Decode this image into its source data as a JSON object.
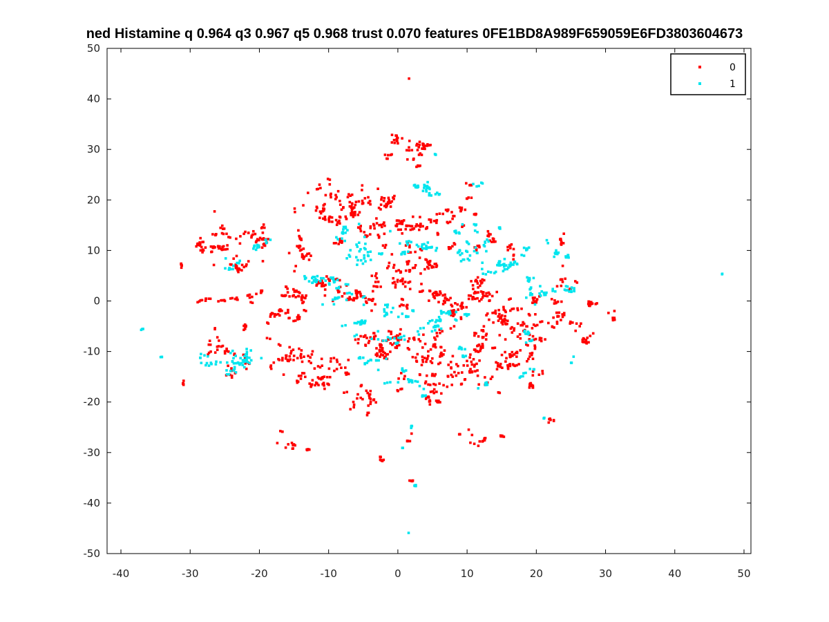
{
  "chart_data": {
    "type": "scatter",
    "title": "ned Histamine q 0.964 q3 0.967 q5 0.968 trust 0.070 features 0FE1BD8A989F659059E6FD3803604673",
    "xlabel": "",
    "ylabel": "",
    "xlim": [
      -42,
      51
    ],
    "ylim": [
      -50,
      50
    ],
    "xticks": [
      -40,
      -30,
      -20,
      -10,
      0,
      10,
      20,
      30,
      40,
      50
    ],
    "yticks": [
      -50,
      -40,
      -30,
      -20,
      -10,
      0,
      10,
      20,
      30,
      40,
      50
    ],
    "grid": false,
    "legend_position": "top-right",
    "series": [
      {
        "name": "0",
        "color": "#ff0000",
        "clusters": [
          {
            "cx": -27.5,
            "cy": 11.0,
            "sx": 1.5,
            "sy": 1.0,
            "n": 40
          },
          {
            "cx": -23.0,
            "cy": 12.5,
            "sx": 2.0,
            "sy": 1.2,
            "n": 35
          },
          {
            "cx": -23.5,
            "cy": 6.0,
            "sx": 1.2,
            "sy": 1.2,
            "n": 25
          },
          {
            "cx": -19.5,
            "cy": 10.0,
            "sx": 1.0,
            "sy": 2.5,
            "n": 15
          },
          {
            "cx": -27.0,
            "cy": -0.5,
            "sx": 2.0,
            "sy": 0.8,
            "n": 20
          },
          {
            "cx": -23.0,
            "cy": -4.0,
            "sx": 1.0,
            "sy": 1.5,
            "n": 8
          },
          {
            "cx": -17.5,
            "cy": 3.0,
            "sx": 1.5,
            "sy": 1.0,
            "n": 10
          },
          {
            "cx": -14.5,
            "cy": 9.0,
            "sx": 1.0,
            "sy": 2.0,
            "n": 30
          },
          {
            "cx": -14.5,
            "cy": -0.5,
            "sx": 1.5,
            "sy": 1.5,
            "n": 30
          },
          {
            "cx": -17.0,
            "cy": -3.5,
            "sx": 1.2,
            "sy": 1.2,
            "n": 25
          },
          {
            "cx": -16.0,
            "cy": -10.5,
            "sx": 2.0,
            "sy": 1.8,
            "n": 45
          },
          {
            "cx": -12.0,
            "cy": -15.0,
            "sx": 1.5,
            "sy": 2.0,
            "n": 40
          },
          {
            "cx": -9.0,
            "cy": -14.5,
            "sx": 1.5,
            "sy": 1.0,
            "n": 15
          },
          {
            "cx": -11.0,
            "cy": 19.0,
            "sx": 1.8,
            "sy": 2.5,
            "n": 40
          },
          {
            "cx": -7.5,
            "cy": 18.5,
            "sx": 1.2,
            "sy": 2.0,
            "n": 25
          },
          {
            "cx": -5.5,
            "cy": 20.0,
            "sx": 1.5,
            "sy": 2.0,
            "n": 35
          },
          {
            "cx": -2.0,
            "cy": 20.0,
            "sx": 1.5,
            "sy": 1.5,
            "n": 25
          },
          {
            "cx": -2.5,
            "cy": 13.0,
            "sx": 1.5,
            "sy": 2.0,
            "n": 30
          },
          {
            "cx": 0.5,
            "cy": 14.5,
            "sx": 1.5,
            "sy": 2.0,
            "n": 25
          },
          {
            "cx": 4.5,
            "cy": 15.5,
            "sx": 2.0,
            "sy": 1.0,
            "n": 30
          },
          {
            "cx": 8.5,
            "cy": 17.0,
            "sx": 1.5,
            "sy": 1.5,
            "n": 20
          },
          {
            "cx": 10.5,
            "cy": 19.0,
            "sx": 0.8,
            "sy": 1.5,
            "n": 8
          },
          {
            "cx": 10.0,
            "cy": 23.0,
            "sx": 0.6,
            "sy": 0.3,
            "n": 5
          },
          {
            "cx": 1.0,
            "cy": 6.5,
            "sx": 2.0,
            "sy": 1.5,
            "n": 35
          },
          {
            "cx": 4.0,
            "cy": 7.5,
            "sx": 1.5,
            "sy": 1.5,
            "n": 25
          },
          {
            "cx": -4.5,
            "cy": 0.5,
            "sx": 2.0,
            "sy": 1.2,
            "n": 35
          },
          {
            "cx": 0.0,
            "cy": 2.5,
            "sx": 2.0,
            "sy": 1.5,
            "n": 30
          },
          {
            "cx": 5.0,
            "cy": 1.0,
            "sx": 2.0,
            "sy": 1.5,
            "n": 35
          },
          {
            "cx": 8.5,
            "cy": -0.5,
            "sx": 1.5,
            "sy": 1.5,
            "n": 25
          },
          {
            "cx": -9.5,
            "cy": 2.5,
            "sx": 2.0,
            "sy": 1.8,
            "n": 30
          },
          {
            "cx": -4.5,
            "cy": -8.0,
            "sx": 2.0,
            "sy": 2.0,
            "n": 50
          },
          {
            "cx": 0.5,
            "cy": -9.5,
            "sx": 2.0,
            "sy": 2.0,
            "n": 45
          },
          {
            "cx": 4.5,
            "cy": -11.0,
            "sx": 2.0,
            "sy": 2.0,
            "n": 45
          },
          {
            "cx": 2.5,
            "cy": -16.0,
            "sx": 1.5,
            "sy": 1.2,
            "n": 25
          },
          {
            "cx": 4.5,
            "cy": -19.0,
            "sx": 1.2,
            "sy": 1.5,
            "n": 20
          },
          {
            "cx": -5.0,
            "cy": -19.5,
            "sx": 1.2,
            "sy": 2.0,
            "n": 30
          },
          {
            "cx": 10.0,
            "cy": -13.0,
            "sx": 2.0,
            "sy": 2.0,
            "n": 45
          },
          {
            "cx": 12.0,
            "cy": -8.5,
            "sx": 1.5,
            "sy": 1.5,
            "n": 30
          },
          {
            "cx": 13.5,
            "cy": -0.5,
            "sx": 1.5,
            "sy": 1.5,
            "n": 30
          },
          {
            "cx": 16.5,
            "cy": -4.5,
            "sx": 2.0,
            "sy": 1.5,
            "n": 45
          },
          {
            "cx": 16.5,
            "cy": -11.5,
            "sx": 1.8,
            "sy": 1.5,
            "n": 50
          },
          {
            "cx": 20.5,
            "cy": -9.0,
            "sx": 1.5,
            "sy": 2.0,
            "n": 30
          },
          {
            "cx": 19.0,
            "cy": -17.0,
            "sx": 0.6,
            "sy": 1.5,
            "n": 10
          },
          {
            "cx": 22.5,
            "cy": -4.0,
            "sx": 1.8,
            "sy": 1.5,
            "n": 30
          },
          {
            "cx": 23.5,
            "cy": 4.0,
            "sx": 1.0,
            "sy": 1.5,
            "n": 15
          },
          {
            "cx": 23.5,
            "cy": 11.5,
            "sx": 0.5,
            "sy": 1.5,
            "n": 10
          },
          {
            "cx": 26.5,
            "cy": -5.5,
            "sx": 1.2,
            "sy": 1.5,
            "n": 20
          },
          {
            "cx": 28.0,
            "cy": -1.0,
            "sx": 0.8,
            "sy": 1.0,
            "n": 12
          },
          {
            "cx": 31.0,
            "cy": -2.0,
            "sx": 0.6,
            "sy": 0.8,
            "n": 10
          },
          {
            "cx": 13.0,
            "cy": 12.5,
            "sx": 1.0,
            "sy": 1.5,
            "n": 20
          },
          {
            "cx": 17.0,
            "cy": 10.0,
            "sx": 1.2,
            "sy": 1.0,
            "n": 10
          },
          {
            "cx": 11.0,
            "cy": 3.5,
            "sx": 1.5,
            "sy": 1.5,
            "n": 25
          },
          {
            "cx": 2.0,
            "cy": 31.0,
            "sx": 1.5,
            "sy": 0.8,
            "n": 30
          },
          {
            "cx": 3.0,
            "cy": 27.5,
            "sx": 1.0,
            "sy": 0.8,
            "n": 12
          },
          {
            "cx": -0.5,
            "cy": 32.5,
            "sx": 0.6,
            "sy": 1.0,
            "n": 8
          },
          {
            "cx": -2.0,
            "cy": 28.5,
            "sx": 0.8,
            "sy": 0.5,
            "n": 6
          },
          {
            "cx": 1.6,
            "cy": 44.0,
            "sx": 0.1,
            "sy": 0.1,
            "n": 1
          },
          {
            "cx": -26.5,
            "cy": 17.7,
            "sx": 0.1,
            "sy": 0.1,
            "n": 1
          },
          {
            "cx": -31.0,
            "cy": 8.0,
            "sx": 0.2,
            "sy": 0.6,
            "n": 5
          },
          {
            "cx": -31.0,
            "cy": -15.5,
            "sx": 0.2,
            "sy": 0.6,
            "n": 6
          },
          {
            "cx": -23.0,
            "cy": -12.0,
            "sx": 1.5,
            "sy": 2.0,
            "n": 25
          },
          {
            "cx": -26.5,
            "cy": -8.5,
            "sx": 1.0,
            "sy": 1.5,
            "n": 12
          },
          {
            "cx": -16.0,
            "cy": -28.5,
            "sx": 1.2,
            "sy": 0.8,
            "n": 15
          },
          {
            "cx": -17.0,
            "cy": -25.5,
            "sx": 0.2,
            "sy": 0.3,
            "n": 3
          },
          {
            "cx": -3.0,
            "cy": -31.0,
            "sx": 0.8,
            "sy": 0.6,
            "n": 8
          },
          {
            "cx": 2.5,
            "cy": -26.0,
            "sx": 0.5,
            "sy": 0.6,
            "n": 6
          },
          {
            "cx": 2.5,
            "cy": -35.5,
            "sx": 0.5,
            "sy": 0.3,
            "n": 5
          },
          {
            "cx": 11.5,
            "cy": -27.5,
            "sx": 1.0,
            "sy": 1.0,
            "n": 12
          },
          {
            "cx": 15.0,
            "cy": -27.0,
            "sx": 0.8,
            "sy": 0.4,
            "n": 6
          },
          {
            "cx": 22.0,
            "cy": -24.0,
            "sx": 0.5,
            "sy": 0.6,
            "n": 6
          },
          {
            "cx": 9.0,
            "cy": -26.5,
            "sx": 0.3,
            "sy": 0.3,
            "n": 3
          },
          {
            "cx": -20.5,
            "cy": 2.0,
            "sx": 0.6,
            "sy": 1.5,
            "n": 12
          },
          {
            "cx": -9.0,
            "cy": 12.5,
            "sx": 1.0,
            "sy": 1.0,
            "n": 10
          },
          {
            "cx": 7.0,
            "cy": 11.5,
            "sx": 1.0,
            "sy": 1.0,
            "n": 12
          },
          {
            "cx": 20.0,
            "cy": 1.0,
            "sx": 1.0,
            "sy": 1.0,
            "n": 10
          }
        ]
      },
      {
        "name": "1",
        "color": "#00e5ee",
        "clusters": [
          {
            "cx": 5.0,
            "cy": 21.5,
            "sx": 1.5,
            "sy": 0.8,
            "n": 30
          },
          {
            "cx": 11.5,
            "cy": 23.0,
            "sx": 0.6,
            "sy": 0.3,
            "n": 5
          },
          {
            "cx": 3.0,
            "cy": 10.5,
            "sx": 1.8,
            "sy": 1.2,
            "n": 30
          },
          {
            "cx": -5.0,
            "cy": 10.0,
            "sx": 2.0,
            "sy": 2.0,
            "n": 35
          },
          {
            "cx": -9.0,
            "cy": 3.5,
            "sx": 2.0,
            "sy": 1.0,
            "n": 25
          },
          {
            "cx": -13.0,
            "cy": 4.0,
            "sx": 1.0,
            "sy": 1.0,
            "n": 10
          },
          {
            "cx": -9.0,
            "cy": 0.0,
            "sx": 1.5,
            "sy": 1.0,
            "n": 15
          },
          {
            "cx": -6.5,
            "cy": -5.0,
            "sx": 1.5,
            "sy": 1.0,
            "n": 15
          },
          {
            "cx": -2.0,
            "cy": -8.0,
            "sx": 2.5,
            "sy": 1.5,
            "n": 25
          },
          {
            "cx": -3.0,
            "cy": -12.0,
            "sx": 1.5,
            "sy": 0.8,
            "n": 15
          },
          {
            "cx": 0.5,
            "cy": -3.5,
            "sx": 1.5,
            "sy": 1.5,
            "n": 20
          },
          {
            "cx": 4.0,
            "cy": -4.5,
            "sx": 1.5,
            "sy": 1.2,
            "n": 20
          },
          {
            "cx": 0.0,
            "cy": -15.0,
            "sx": 1.2,
            "sy": 1.0,
            "n": 20
          },
          {
            "cx": 3.5,
            "cy": -18.0,
            "sx": 0.5,
            "sy": 0.5,
            "n": 8
          },
          {
            "cx": 9.0,
            "cy": -3.0,
            "sx": 1.5,
            "sy": 1.0,
            "n": 20
          },
          {
            "cx": 11.0,
            "cy": 10.0,
            "sx": 1.5,
            "sy": 1.5,
            "n": 25
          },
          {
            "cx": 14.0,
            "cy": 7.0,
            "sx": 1.5,
            "sy": 1.0,
            "n": 20
          },
          {
            "cx": 16.0,
            "cy": 6.5,
            "sx": 1.5,
            "sy": 0.8,
            "n": 20
          },
          {
            "cx": 18.5,
            "cy": 10.0,
            "sx": 0.8,
            "sy": 0.8,
            "n": 8
          },
          {
            "cx": 19.5,
            "cy": 4.0,
            "sx": 0.8,
            "sy": 1.0,
            "n": 15
          },
          {
            "cx": 21.0,
            "cy": 1.0,
            "sx": 1.2,
            "sy": 1.0,
            "n": 15
          },
          {
            "cx": 23.5,
            "cy": 8.5,
            "sx": 0.8,
            "sy": 1.5,
            "n": 15
          },
          {
            "cx": 24.0,
            "cy": 2.5,
            "sx": 1.5,
            "sy": 0.6,
            "n": 15
          },
          {
            "cx": 18.0,
            "cy": -8.0,
            "sx": 1.2,
            "sy": 1.0,
            "n": 12
          },
          {
            "cx": 19.5,
            "cy": -14.0,
            "sx": 1.0,
            "sy": 0.6,
            "n": 8
          },
          {
            "cx": 10.5,
            "cy": -10.5,
            "sx": 1.0,
            "sy": 1.0,
            "n": 12
          },
          {
            "cx": 12.5,
            "cy": -16.5,
            "sx": 0.5,
            "sy": 0.5,
            "n": 6
          },
          {
            "cx": 9.0,
            "cy": 14.5,
            "sx": 1.0,
            "sy": 1.0,
            "n": 10
          },
          {
            "cx": -24.5,
            "cy": -11.5,
            "sx": 1.8,
            "sy": 1.8,
            "n": 45
          },
          {
            "cx": -21.5,
            "cy": -10.5,
            "sx": 1.0,
            "sy": 1.5,
            "n": 15
          },
          {
            "cx": -24.0,
            "cy": 8.0,
            "sx": 1.0,
            "sy": 1.0,
            "n": 12
          },
          {
            "cx": -20.0,
            "cy": 10.5,
            "sx": 1.0,
            "sy": 1.0,
            "n": 10
          },
          {
            "cx": -18.5,
            "cy": 12.0,
            "sx": 0.6,
            "sy": 0.3,
            "n": 5
          },
          {
            "cx": -37.0,
            "cy": -6.0,
            "sx": 0.2,
            "sy": 0.3,
            "n": 4
          },
          {
            "cx": -34.0,
            "cy": -11.0,
            "sx": 0.3,
            "sy": 0.2,
            "n": 4
          },
          {
            "cx": 47.0,
            "cy": 5.5,
            "sx": 0.2,
            "sy": 0.2,
            "n": 2
          },
          {
            "cx": 1.5,
            "cy": -46.0,
            "sx": 0.1,
            "sy": 0.1,
            "n": 1
          },
          {
            "cx": 2.5,
            "cy": -36.5,
            "sx": 0.5,
            "sy": 0.3,
            "n": 6
          },
          {
            "cx": 2.0,
            "cy": -25.0,
            "sx": 0.3,
            "sy": 0.4,
            "n": 4
          },
          {
            "cx": 21.0,
            "cy": -23.0,
            "sx": 0.2,
            "sy": 0.3,
            "n": 3
          },
          {
            "cx": 0.5,
            "cy": -29.0,
            "sx": 0.2,
            "sy": 0.2,
            "n": 2
          },
          {
            "cx": 5.5,
            "cy": 28.5,
            "sx": 0.3,
            "sy": 0.3,
            "n": 3
          },
          {
            "cx": 15.0,
            "cy": 14.0,
            "sx": 0.5,
            "sy": 0.4,
            "n": 4
          },
          {
            "cx": 25.0,
            "cy": -12.0,
            "sx": 0.6,
            "sy": 0.6,
            "n": 4
          },
          {
            "cx": -7.0,
            "cy": 14.5,
            "sx": 1.0,
            "sy": 0.8,
            "n": 10
          }
        ]
      }
    ]
  }
}
